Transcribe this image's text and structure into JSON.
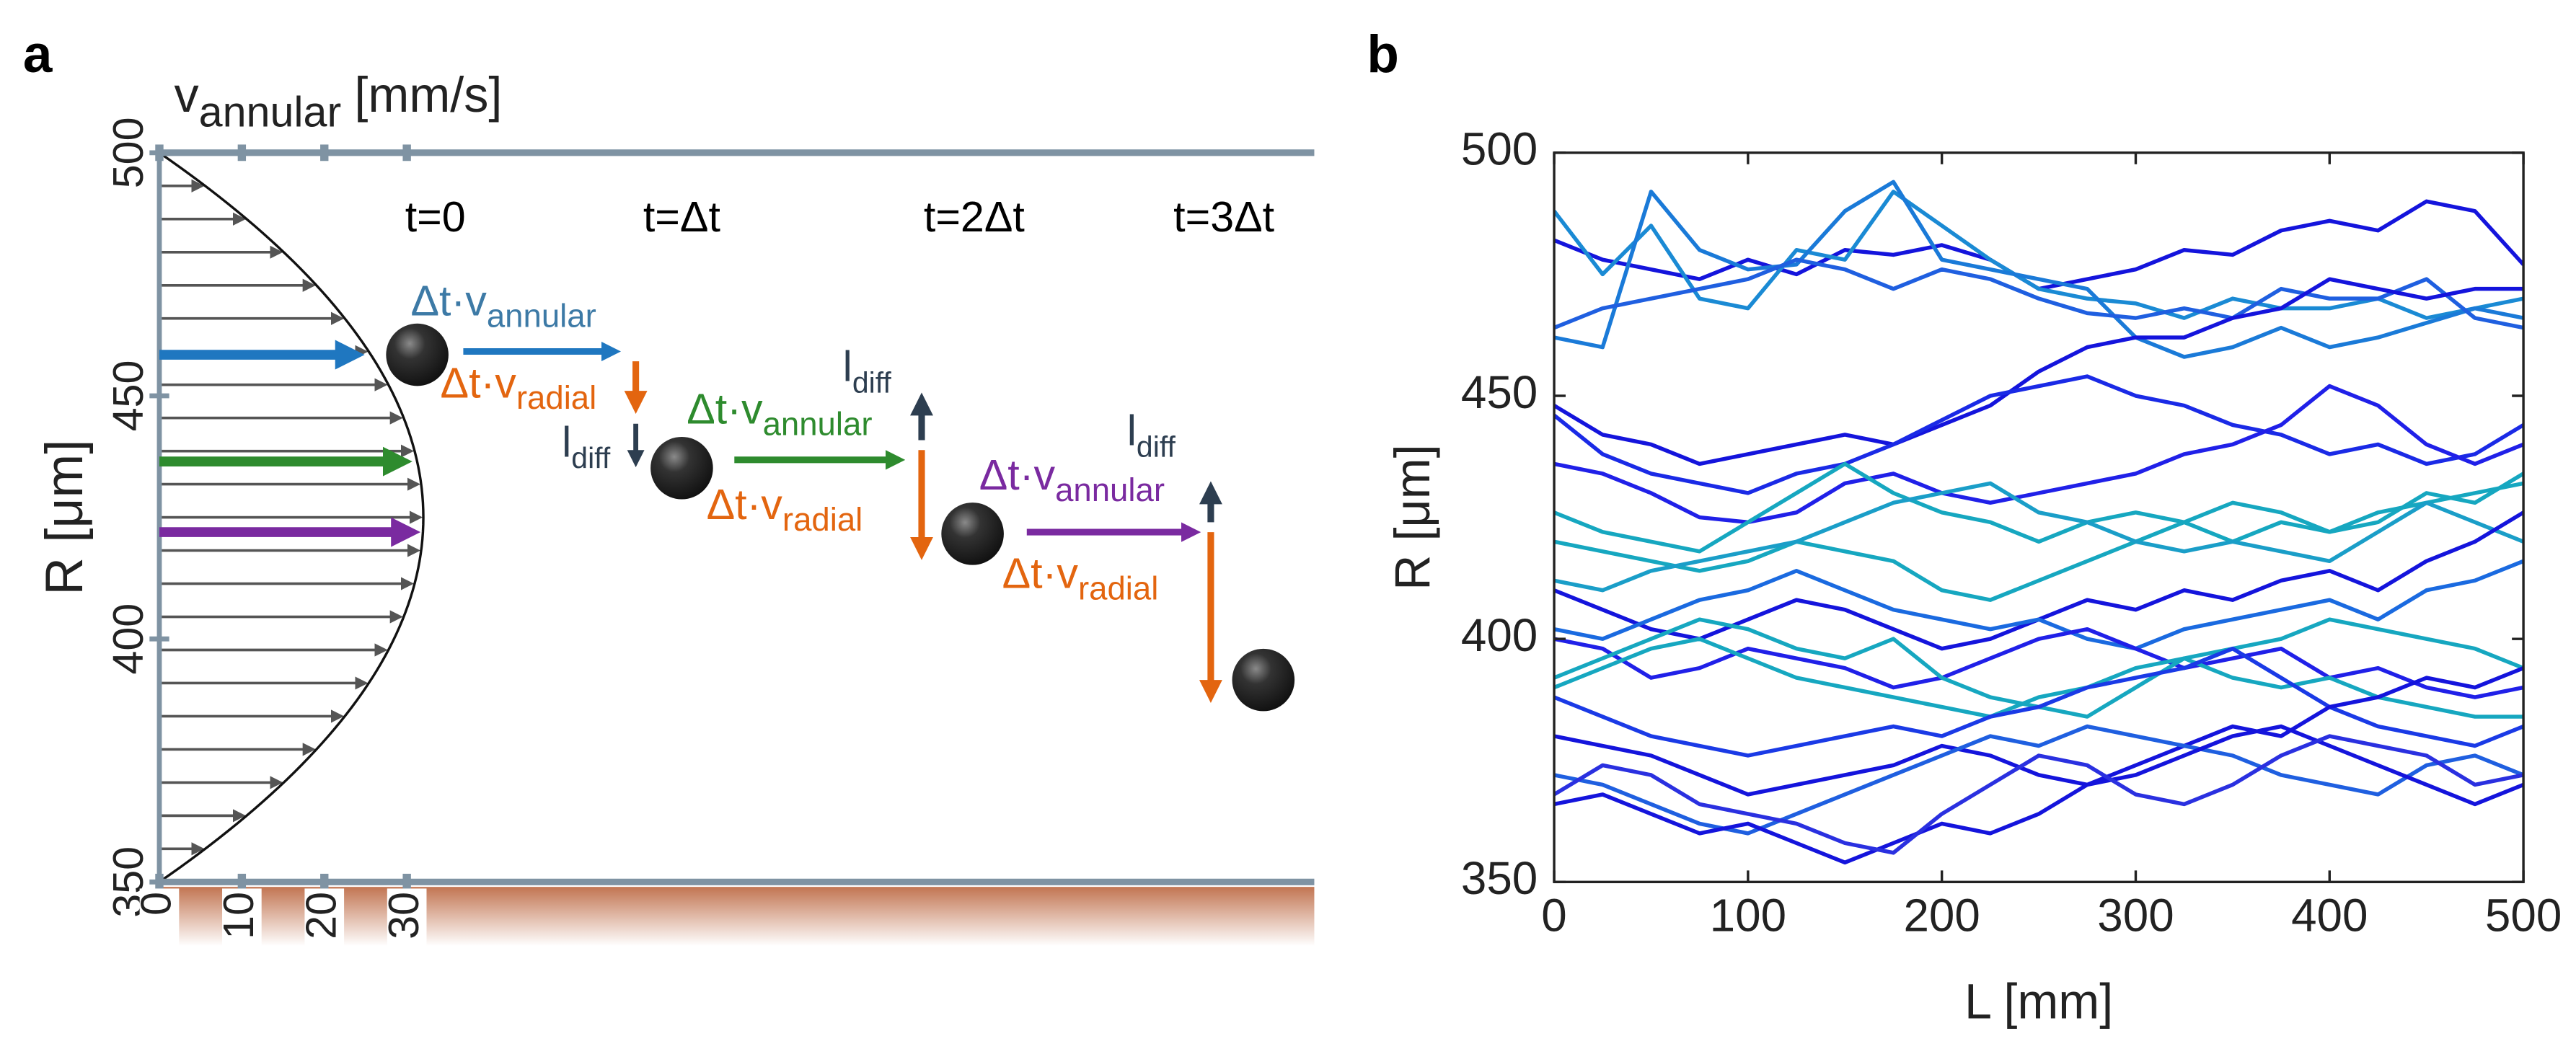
{
  "chart_data": [
    {
      "type": "profile",
      "panel_label": "a",
      "x_label": {
        "main": "v",
        "sub": "annular",
        "suffix": "[mm/s]"
      },
      "y_label": "R [μm]",
      "xlim": [
        0,
        140
      ],
      "xticks": [
        0,
        10,
        20,
        30
      ],
      "ylim": [
        350,
        500
      ],
      "yticks": [
        350,
        400,
        450,
        500
      ],
      "peak_velocity": 32,
      "time_labels": [
        "t=0",
        "t=Δt",
        "t=2Δt",
        "t=3Δt"
      ],
      "annular_step": {
        "main": "Δt·v",
        "sub": "annular"
      },
      "radial_step": {
        "main": "Δt·v",
        "sub": "radial"
      },
      "diffusion_step": {
        "main": "l",
        "sub": "diff"
      }
    },
    {
      "type": "line",
      "panel_label": "b",
      "xlabel": "L [mm]",
      "ylabel": "R [μm]",
      "xlim": [
        0,
        500
      ],
      "xticks": [
        0,
        100,
        200,
        300,
        400,
        500
      ],
      "ylim": [
        350,
        500
      ],
      "yticks": [
        350,
        400,
        450,
        500
      ],
      "x": [
        0,
        25,
        50,
        75,
        100,
        125,
        150,
        175,
        200,
        225,
        250,
        275,
        300,
        325,
        350,
        375,
        400,
        425,
        450,
        475,
        500
      ],
      "series": [
        {
          "color": "#1414dc",
          "values": [
            482,
            478,
            476,
            474,
            478,
            475,
            480,
            479,
            481,
            478,
            472,
            474,
            476,
            480,
            479,
            484,
            486,
            484,
            490,
            488,
            477
          ]
        },
        {
          "color": "#1a8ad4",
          "values": [
            488,
            475,
            485,
            470,
            468,
            480,
            478,
            492,
            485,
            478,
            472,
            470,
            469,
            466,
            470,
            468,
            468,
            470,
            466,
            468,
            470
          ]
        },
        {
          "color": "#1a7ad8",
          "values": [
            462,
            460,
            492,
            480,
            476,
            477,
            488,
            494,
            478,
            476,
            474,
            472,
            462,
            458,
            460,
            464,
            460,
            462,
            465,
            468,
            466
          ]
        },
        {
          "color": "#1f5fe0",
          "values": [
            464,
            468,
            470,
            472,
            474,
            478,
            476,
            472,
            476,
            474,
            470,
            467,
            466,
            468,
            466,
            472,
            470,
            470,
            474,
            466,
            464
          ]
        },
        {
          "color": "#1414dc",
          "values": [
            448,
            442,
            440,
            436,
            438,
            440,
            442,
            440,
            444,
            448,
            455,
            460,
            462,
            462,
            466,
            468,
            474,
            472,
            470,
            472,
            472
          ]
        },
        {
          "color": "#1a2ae6",
          "values": [
            446,
            438,
            434,
            432,
            430,
            434,
            436,
            440,
            445,
            450,
            452,
            454,
            450,
            448,
            444,
            442,
            438,
            440,
            436,
            438,
            444
          ]
        },
        {
          "color": "#2020e8",
          "values": [
            436,
            434,
            430,
            425,
            424,
            426,
            432,
            434,
            430,
            428,
            430,
            432,
            434,
            438,
            440,
            444,
            452,
            448,
            440,
            436,
            440
          ]
        },
        {
          "color": "#16a7c0",
          "values": [
            426,
            422,
            420,
            418,
            424,
            430,
            436,
            430,
            426,
            424,
            420,
            424,
            426,
            424,
            420,
            424,
            422,
            426,
            428,
            430,
            432
          ]
        },
        {
          "color": "#16a7c0",
          "values": [
            420,
            418,
            416,
            414,
            416,
            420,
            418,
            416,
            410,
            408,
            412,
            416,
            420,
            424,
            428,
            426,
            422,
            424,
            430,
            428,
            434
          ]
        },
        {
          "color": "#1a9ec8",
          "values": [
            412,
            410,
            414,
            416,
            418,
            420,
            424,
            428,
            430,
            432,
            426,
            424,
            420,
            418,
            420,
            418,
            416,
            422,
            428,
            424,
            420
          ]
        },
        {
          "color": "#1414dc",
          "values": [
            410,
            406,
            402,
            400,
            404,
            408,
            406,
            402,
            398,
            400,
            404,
            408,
            406,
            410,
            408,
            412,
            414,
            410,
            416,
            420,
            426
          ]
        },
        {
          "color": "#1a6ae0",
          "values": [
            402,
            400,
            404,
            408,
            410,
            414,
            410,
            406,
            404,
            402,
            404,
            400,
            398,
            402,
            404,
            406,
            408,
            404,
            410,
            412,
            416
          ]
        },
        {
          "color": "#2020e8",
          "values": [
            400,
            398,
            392,
            394,
            398,
            396,
            394,
            390,
            392,
            396,
            400,
            402,
            398,
            394,
            396,
            398,
            392,
            394,
            390,
            388,
            390
          ]
        },
        {
          "color": "#16a7c0",
          "values": [
            392,
            396,
            400,
            404,
            402,
            398,
            396,
            400,
            392,
            388,
            386,
            384,
            390,
            396,
            398,
            400,
            404,
            402,
            400,
            398,
            394
          ]
        },
        {
          "color": "#16a7c0",
          "values": [
            390,
            394,
            398,
            400,
            396,
            392,
            390,
            388,
            386,
            384,
            388,
            390,
            394,
            396,
            392,
            390,
            392,
            388,
            386,
            384,
            384
          ]
        },
        {
          "color": "#1a3ae6",
          "values": [
            388,
            384,
            380,
            378,
            376,
            378,
            380,
            382,
            380,
            384,
            386,
            390,
            392,
            394,
            398,
            392,
            386,
            382,
            380,
            378,
            382
          ]
        },
        {
          "color": "#1414dc",
          "values": [
            380,
            378,
            376,
            372,
            368,
            370,
            372,
            374,
            378,
            376,
            372,
            370,
            374,
            378,
            382,
            380,
            386,
            388,
            392,
            390,
            394
          ]
        },
        {
          "color": "#1f5fe0",
          "values": [
            372,
            370,
            366,
            362,
            360,
            364,
            368,
            372,
            376,
            380,
            378,
            382,
            380,
            378,
            376,
            372,
            370,
            368,
            374,
            376,
            372
          ]
        },
        {
          "color": "#1414dc",
          "values": [
            366,
            368,
            364,
            360,
            362,
            358,
            354,
            358,
            362,
            360,
            364,
            370,
            372,
            376,
            380,
            382,
            378,
            374,
            370,
            366,
            370
          ]
        },
        {
          "color": "#2a30e0",
          "values": [
            368,
            374,
            372,
            366,
            364,
            362,
            358,
            356,
            364,
            370,
            376,
            374,
            368,
            366,
            370,
            376,
            380,
            378,
            376,
            370,
            372
          ]
        }
      ]
    }
  ]
}
